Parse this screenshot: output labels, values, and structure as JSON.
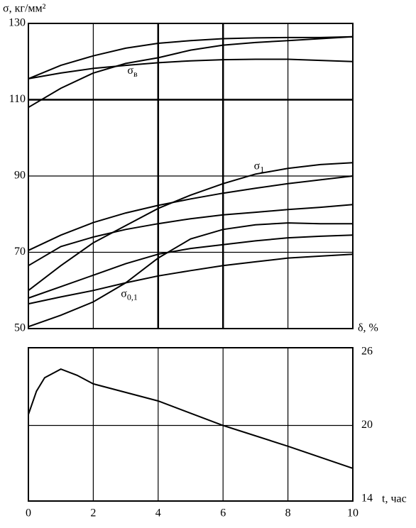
{
  "chart_data": [
    {
      "type": "line",
      "title": "σ, кг/мм²",
      "xlabel": "δ, %",
      "x": [
        0,
        1,
        2,
        3,
        4,
        5,
        6,
        7,
        8,
        9,
        10
      ],
      "xlim": [
        0,
        10
      ],
      "xticks": [
        0,
        2,
        4,
        6,
        8,
        10
      ],
      "ylim": [
        50,
        130
      ],
      "yticks": [
        50,
        70,
        90,
        110,
        130
      ],
      "grid": true,
      "color": "#000000",
      "series": [
        {
          "values": [
            115.5,
            119,
            121.5,
            123.5,
            124.8,
            125.5,
            126,
            126.2,
            126.3,
            126.3,
            126.5
          ]
        },
        {
          "values": [
            108,
            113,
            117,
            119.5,
            121,
            123,
            124.3,
            125,
            125.5,
            126,
            126.5
          ]
        },
        {
          "values": [
            115.5,
            117,
            118.2,
            119,
            119.7,
            120.2,
            120.5,
            120.6,
            120.6,
            120.3,
            120
          ]
        },
        {
          "values": [
            60,
            66.5,
            72.5,
            77,
            81.5,
            85,
            88,
            90.5,
            92,
            93,
            93.5
          ]
        },
        {
          "values": [
            70.5,
            74.5,
            77.8,
            80.3,
            82.3,
            84,
            85.5,
            86.8,
            88,
            89,
            90
          ]
        },
        {
          "values": [
            66.5,
            71.5,
            74,
            76,
            77.5,
            78.8,
            79.8,
            80.5,
            81.2,
            81.8,
            82.5
          ]
        },
        {
          "values": [
            58,
            61,
            64,
            67,
            69.5,
            71,
            72,
            73,
            73.8,
            74.2,
            74.5
          ]
        },
        {
          "values": [
            56.5,
            58.3,
            60,
            62,
            63.8,
            65.2,
            66.5,
            67.5,
            68.5,
            69,
            69.5
          ]
        },
        {
          "values": [
            50.5,
            53.5,
            57,
            62,
            68.5,
            73.5,
            76,
            77.2,
            77.7,
            77.5,
            77.5
          ]
        }
      ],
      "annotations": [
        {
          "text": "σ",
          "sub": "в",
          "x": 3.05,
          "y": 117.5
        },
        {
          "text": "σ",
          "sub": "1",
          "x": 6.95,
          "y": 92.5
        },
        {
          "text": "σ",
          "sub": "0,1",
          "x": 2.85,
          "y": 59
        }
      ]
    },
    {
      "type": "line",
      "xlabel": "t, час",
      "x": [
        0,
        0.25,
        0.5,
        1,
        1.5,
        2,
        4,
        6,
        8,
        10
      ],
      "xlim": [
        0,
        10
      ],
      "xticks": [
        0,
        2,
        4,
        6,
        8,
        10
      ],
      "ylim": [
        14,
        26
      ],
      "yticks": [
        14,
        20,
        26
      ],
      "grid": true,
      "color": "#000000",
      "series": [
        {
          "values": [
            20.9,
            22.8,
            23.9,
            24.6,
            24.1,
            23.4,
            22.0,
            20.0,
            18.3,
            16.5
          ]
        }
      ]
    }
  ]
}
